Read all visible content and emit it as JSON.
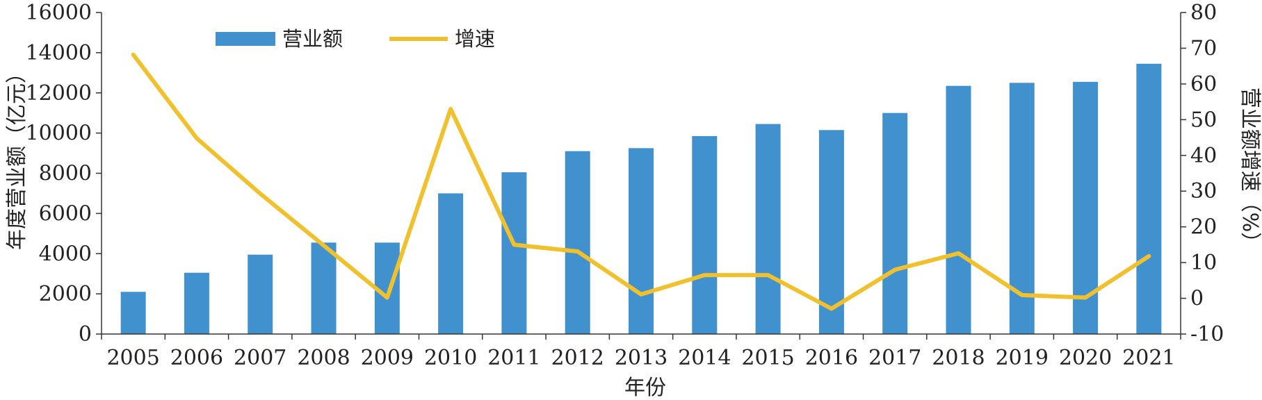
{
  "chart_data": {
    "type": "bar",
    "categories": [
      "2005",
      "2006",
      "2007",
      "2008",
      "2009",
      "2010",
      "2011",
      "2012",
      "2013",
      "2014",
      "2015",
      "2016",
      "2017",
      "2018",
      "2019",
      "2020",
      "2021"
    ],
    "series": [
      {
        "name": "营业额",
        "type": "bar",
        "axis": "left",
        "color": "#4291cf",
        "values": [
          2100,
          3050,
          3950,
          4550,
          4550,
          7000,
          8050,
          9100,
          9250,
          9850,
          10450,
          10150,
          11000,
          12350,
          12500,
          12550,
          13450
        ]
      },
      {
        "name": "增速",
        "type": "line",
        "axis": "right",
        "color": "#f0c12c",
        "values": [
          68.2,
          44.8,
          29.3,
          14.8,
          0.2,
          53.0,
          15.0,
          13.1,
          1.1,
          6.5,
          6.5,
          -2.9,
          8.0,
          12.6,
          0.9,
          0.2,
          11.8
        ]
      }
    ],
    "xlabel": "年份",
    "ylabel": "年度营业额（亿元）",
    "y2label": "营业额增速（%）",
    "ylim": [
      0,
      16000
    ],
    "y2lim": [
      -10,
      80
    ],
    "yticks": [
      "0",
      "2000",
      "4000",
      "6000",
      "8000",
      "10000",
      "12000",
      "14000",
      "16000"
    ],
    "y2ticks": [
      "-10",
      "0",
      "10",
      "20",
      "30",
      "40",
      "50",
      "60",
      "70",
      "80"
    ],
    "legend_position": "top-left",
    "grid": false
  }
}
